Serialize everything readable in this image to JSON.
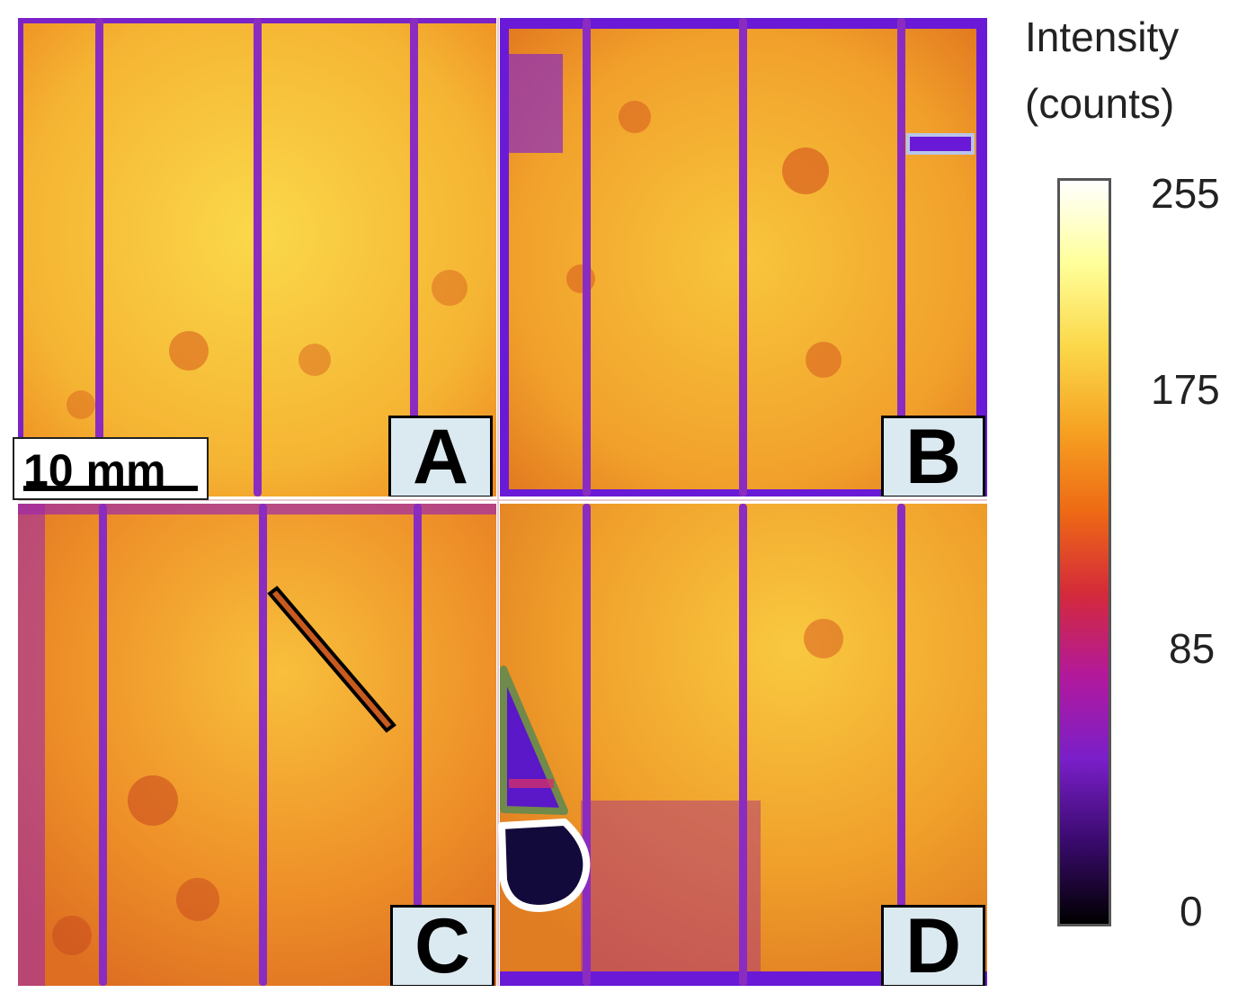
{
  "panels": [
    {
      "label": "A"
    },
    {
      "label": "B"
    },
    {
      "label": "C"
    },
    {
      "label": "D"
    }
  ],
  "scale_bar": {
    "label": "10 mm"
  },
  "colorbar": {
    "title_line1": "Intensity",
    "title_line2": "(counts)",
    "ticks": [
      "255",
      "175",
      "85",
      "0"
    ],
    "colormap": [
      "#000000",
      "#3a0a6e",
      "#7a1fc9",
      "#b2199c",
      "#d42a3a",
      "#ee6a14",
      "#f6a323",
      "#fbd84a",
      "#ffff9a",
      "#ffffff"
    ]
  },
  "colors": {
    "map_base": "#f3a52c",
    "map_bright": "#fbd44a",
    "stripe": "#7b22c8",
    "border": "#6a1ad6"
  }
}
